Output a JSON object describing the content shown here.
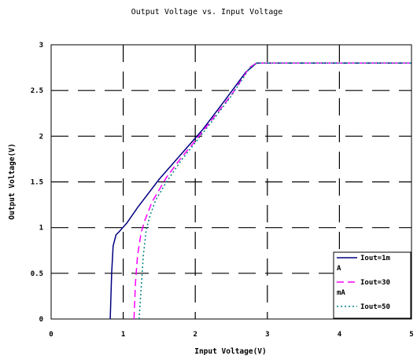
{
  "chart_data": {
    "type": "line",
    "title": "Output Voltage vs. Input Voltage",
    "xlabel": "Input Voltage(V)",
    "ylabel": "Output Voltage(V)",
    "xlim": [
      0,
      5
    ],
    "ylim": [
      0,
      3
    ],
    "xticks": [
      0,
      1,
      2,
      3,
      4,
      5
    ],
    "xtick_labels": [
      "0",
      "1",
      "2",
      "3",
      "4",
      "5"
    ],
    "yticks": [
      0,
      0.5,
      1,
      1.5,
      2,
      2.5,
      3
    ],
    "ytick_labels": [
      "0",
      "0.5",
      "1",
      "1.5",
      "2",
      "2.5",
      "3"
    ],
    "grid": true,
    "legend_position": "bottom-right",
    "series": [
      {
        "name": "Iout=1m\nA",
        "color": "#000080",
        "dash": "solid",
        "x": [
          0.82,
          0.84,
          0.86,
          0.9,
          0.95,
          1.05,
          1.2,
          1.5,
          1.8,
          2.1,
          2.4,
          2.7,
          2.85,
          3.0,
          4.0,
          5.0
        ],
        "y": [
          0,
          0.5,
          0.8,
          0.92,
          0.96,
          1.05,
          1.22,
          1.53,
          1.8,
          2.07,
          2.38,
          2.7,
          2.8,
          2.8,
          2.8,
          2.8
        ]
      },
      {
        "name": "Iout=30\nmA",
        "color": "#ff00ff",
        "dash": "dash",
        "x": [
          1.15,
          1.17,
          1.2,
          1.25,
          1.3,
          1.4,
          1.6,
          1.8,
          2.0,
          2.2,
          2.5,
          2.75,
          2.85,
          3.0,
          4.0,
          5.0
        ],
        "y": [
          0,
          0.4,
          0.7,
          0.95,
          1.08,
          1.28,
          1.55,
          1.76,
          1.95,
          2.15,
          2.45,
          2.75,
          2.8,
          2.8,
          2.8,
          2.8
        ]
      },
      {
        "name": "Iout=50",
        "color": "#008080",
        "dash": "dot",
        "x": [
          1.22,
          1.25,
          1.28,
          1.32,
          1.38,
          1.45,
          1.6,
          1.8,
          2.0,
          2.2,
          2.5,
          2.75,
          2.85,
          3.0,
          4.0,
          5.0
        ],
        "y": [
          0,
          0.35,
          0.7,
          0.98,
          1.15,
          1.3,
          1.5,
          1.73,
          1.93,
          2.13,
          2.44,
          2.74,
          2.8,
          2.8,
          2.8,
          2.8
        ]
      }
    ]
  }
}
